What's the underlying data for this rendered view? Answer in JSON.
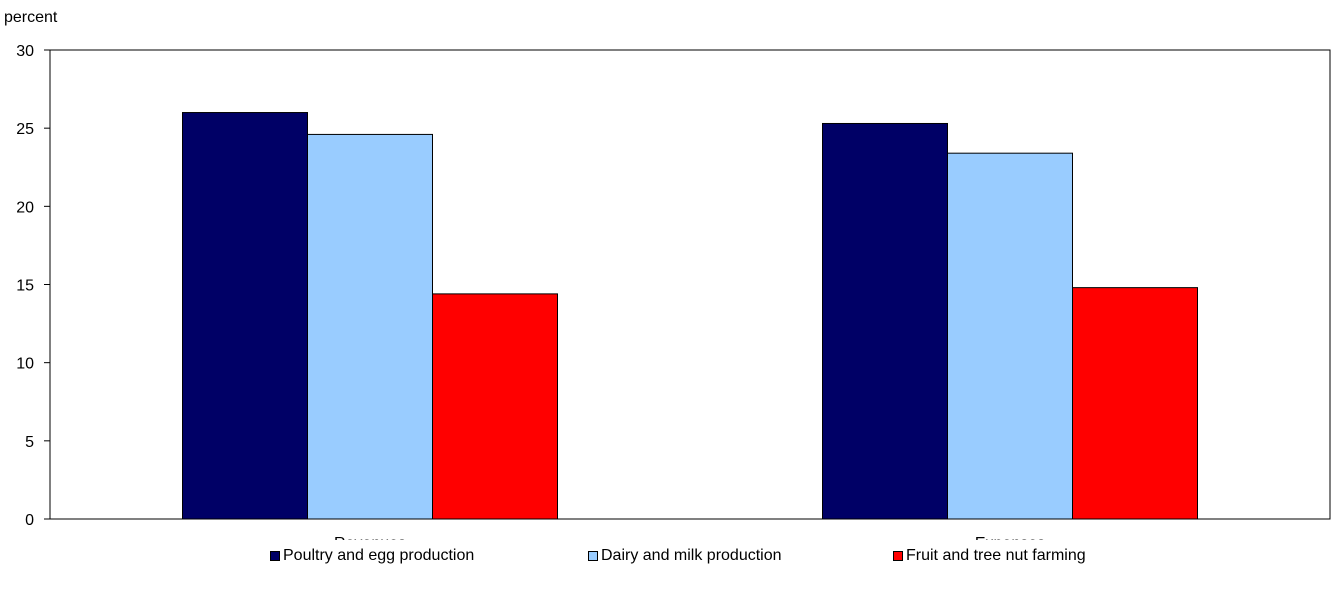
{
  "chart_data": {
    "type": "bar",
    "unit_label": "percent",
    "categories": [
      "Revenues",
      "Expenses"
    ],
    "series": [
      {
        "name": "Poultry and egg production",
        "color": "#000066",
        "values": [
          26.0,
          25.3
        ]
      },
      {
        "name": "Dairy and milk production",
        "color": "#99ccff",
        "values": [
          24.6,
          23.4
        ]
      },
      {
        "name": "Fruit and tree nut farming",
        "color": "#ff0000",
        "values": [
          14.4,
          14.8
        ]
      }
    ],
    "ylim": [
      0,
      30
    ],
    "yticks": [
      "0",
      "5",
      "10",
      "15",
      "20",
      "25",
      "30"
    ],
    "grid": false,
    "legend_position": "bottom"
  }
}
